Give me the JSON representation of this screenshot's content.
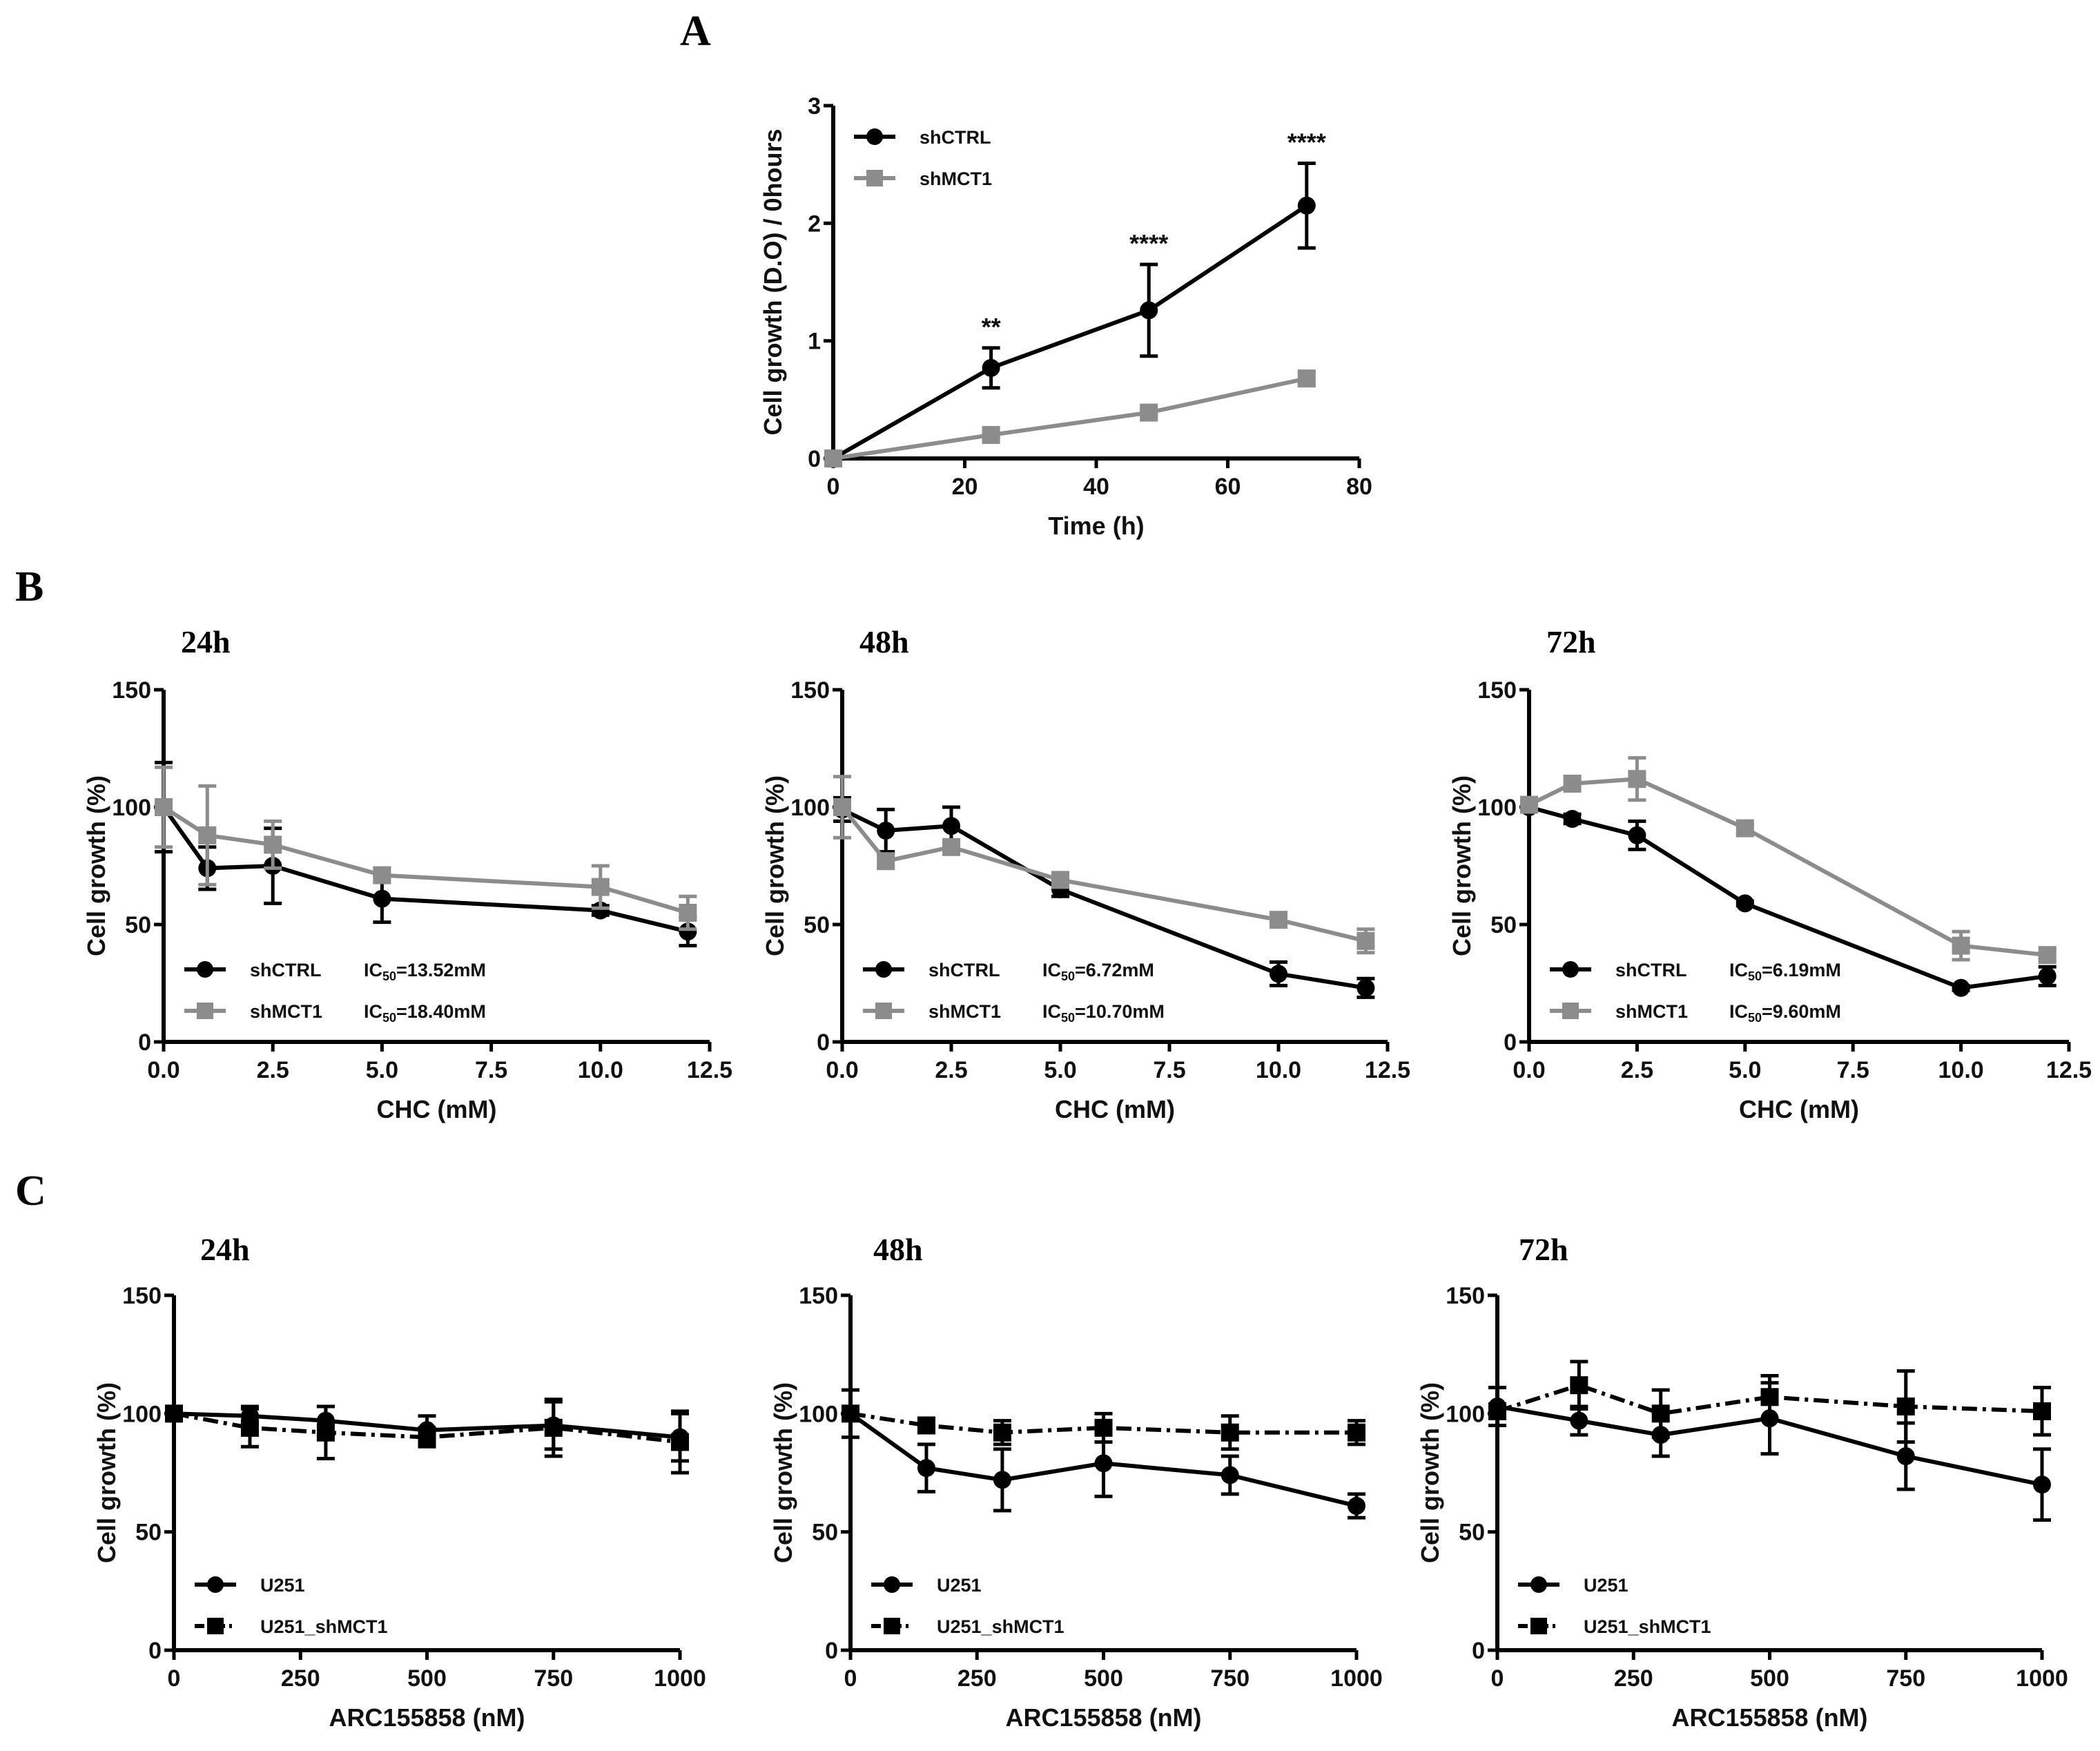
{
  "panel_labels": [
    "A",
    "B",
    "C"
  ],
  "chart_data": [
    {
      "id": "A",
      "type": "line",
      "title": "",
      "xlabel": "Time (h)",
      "ylabel": "Cell growth (D.O) / 0hours",
      "xlim": [
        0,
        80
      ],
      "ylim": [
        0,
        3
      ],
      "xticks": [
        "0",
        "20",
        "40",
        "60",
        "80"
      ],
      "xtickvals": [
        0,
        20,
        40,
        60,
        80
      ],
      "yticks": [
        "0",
        "1",
        "2",
        "3"
      ],
      "ytickvals": [
        0,
        1,
        2,
        3
      ],
      "legend": "top-left",
      "x": [
        0,
        24,
        48,
        72
      ],
      "series": [
        {
          "name": "shCTRL",
          "ic50": "",
          "color": "#000000",
          "marker": "circle",
          "dash": false,
          "values": [
            0,
            0.77,
            1.26,
            2.15
          ],
          "errors": [
            0,
            0.17,
            0.39,
            0.36
          ]
        },
        {
          "name": "shMCT1",
          "ic50": "",
          "color": "#8c8c8c",
          "marker": "square",
          "dash": false,
          "values": [
            0,
            0.2,
            0.39,
            0.68
          ],
          "errors": [
            0,
            0.02,
            0.03,
            0.05
          ]
        }
      ],
      "annotations": [
        {
          "x": 24,
          "text": "**"
        },
        {
          "x": 48,
          "text": "****"
        },
        {
          "x": 72,
          "text": "****"
        }
      ]
    },
    {
      "id": "B-24h",
      "type": "line",
      "title": "24h",
      "xlabel": "CHC (mM)",
      "ylabel": "Cell growth (%)",
      "xlim": [
        0,
        12.5
      ],
      "ylim": [
        0,
        150
      ],
      "xticks": [
        "0.0",
        "2.5",
        "5.0",
        "7.5",
        "10.0",
        "12.5"
      ],
      "xtickvals": [
        0,
        2.5,
        5,
        7.5,
        10,
        12.5
      ],
      "yticks": [
        "0",
        "50",
        "100",
        "150"
      ],
      "ytickvals": [
        0,
        50,
        100,
        150
      ],
      "legend": "bottom-left",
      "x": [
        0,
        1,
        2.5,
        5,
        10,
        12
      ],
      "series": [
        {
          "name": "shCTRL",
          "ic50": "13.52mM",
          "color": "#000000",
          "marker": "circle",
          "dash": false,
          "values": [
            100,
            74,
            75,
            61,
            56,
            47
          ],
          "errors": [
            19,
            9,
            16,
            10,
            2,
            6
          ]
        },
        {
          "name": "shMCT1",
          "ic50": "18.40mM",
          "color": "#8c8c8c",
          "marker": "square",
          "dash": false,
          "values": [
            100,
            88,
            84,
            71,
            66,
            55
          ],
          "errors": [
            17,
            21,
            10,
            3,
            9,
            7
          ]
        }
      ]
    },
    {
      "id": "B-48h",
      "type": "line",
      "title": "48h",
      "xlabel": "CHC (mM)",
      "ylabel": "Cell growth (%)",
      "xlim": [
        0,
        12.5
      ],
      "ylim": [
        0,
        150
      ],
      "xticks": [
        "0.0",
        "2.5",
        "5.0",
        "7.5",
        "10.0",
        "12.5"
      ],
      "xtickvals": [
        0,
        2.5,
        5,
        7.5,
        10,
        12.5
      ],
      "yticks": [
        "0",
        "50",
        "100",
        "150"
      ],
      "ytickvals": [
        0,
        50,
        100,
        150
      ],
      "legend": "bottom-left",
      "x": [
        0,
        1,
        2.5,
        5,
        10,
        12
      ],
      "series": [
        {
          "name": "shCTRL",
          "ic50": "6.72mM",
          "color": "#000000",
          "marker": "circle",
          "dash": false,
          "values": [
            99,
            90,
            92,
            65,
            29,
            23
          ],
          "errors": [
            5,
            9,
            8,
            3,
            5,
            4
          ]
        },
        {
          "name": "shMCT1",
          "ic50": "10.70mM",
          "color": "#8c8c8c",
          "marker": "square",
          "dash": false,
          "values": [
            100,
            77,
            83,
            69,
            52,
            43
          ],
          "errors": [
            13,
            3,
            2,
            2,
            3,
            5
          ]
        }
      ]
    },
    {
      "id": "B-72h",
      "type": "line",
      "title": "72h",
      "xlabel": "CHC (mM)",
      "ylabel": "Cell growth (%)",
      "xlim": [
        0,
        12.5
      ],
      "ylim": [
        0,
        150
      ],
      "xticks": [
        "0.0",
        "2.5",
        "5.0",
        "7.5",
        "10.0",
        "12.5"
      ],
      "xtickvals": [
        0,
        2.5,
        5,
        7.5,
        10,
        12.5
      ],
      "yticks": [
        "0",
        "50",
        "100",
        "150"
      ],
      "ytickvals": [
        0,
        50,
        100,
        150
      ],
      "legend": "bottom-left",
      "x": [
        0,
        1,
        2.5,
        5,
        10,
        12
      ],
      "series": [
        {
          "name": "shCTRL",
          "ic50": "6.19mM",
          "color": "#000000",
          "marker": "circle",
          "dash": false,
          "values": [
            100,
            95,
            88,
            59,
            23,
            28
          ],
          "errors": [
            2,
            2,
            6,
            1,
            1,
            4
          ]
        },
        {
          "name": "shMCT1",
          "ic50": "9.60mM",
          "color": "#8c8c8c",
          "marker": "square",
          "dash": false,
          "values": [
            101,
            110,
            112,
            91,
            41,
            37
          ],
          "errors": [
            3,
            2,
            9,
            2,
            6,
            2
          ]
        }
      ]
    },
    {
      "id": "C-24h",
      "type": "line",
      "title": "24h",
      "xlabel": "ARC155858 (nM)",
      "ylabel": "Cell growth (%)",
      "xlim": [
        0,
        1000
      ],
      "ylim": [
        0,
        150
      ],
      "xticks": [
        "0",
        "250",
        "500",
        "750",
        "1000"
      ],
      "xtickvals": [
        0,
        250,
        500,
        750,
        1000
      ],
      "yticks": [
        "0",
        "50",
        "100",
        "150"
      ],
      "ytickvals": [
        0,
        50,
        100,
        150
      ],
      "legend": "bottom-left",
      "x": [
        0,
        150,
        300,
        500,
        750,
        1000
      ],
      "series": [
        {
          "name": "U251",
          "ic50": "",
          "color": "#000000",
          "marker": "circle",
          "dash": false,
          "values": [
            100,
            99,
            97,
            93,
            95,
            90
          ],
          "errors": [
            3,
            4,
            6,
            6,
            10,
            10
          ]
        },
        {
          "name": "U251_shMCT1",
          "ic50": "",
          "color": "#000000",
          "marker": "square",
          "dash": true,
          "values": [
            100,
            94,
            92,
            90,
            94,
            88
          ],
          "errors": [
            2,
            8,
            11,
            4,
            12,
            13
          ]
        }
      ]
    },
    {
      "id": "C-48h",
      "type": "line",
      "title": "48h",
      "xlabel": "ARC155858 (nM)",
      "ylabel": "Cell growth (%)",
      "xlim": [
        0,
        1000
      ],
      "ylim": [
        0,
        150
      ],
      "xticks": [
        "0",
        "250",
        "500",
        "750",
        "1000"
      ],
      "xtickvals": [
        0,
        250,
        500,
        750,
        1000
      ],
      "yticks": [
        "0",
        "50",
        "100",
        "150"
      ],
      "ytickvals": [
        0,
        50,
        100,
        150
      ],
      "legend": "bottom-left",
      "x": [
        0,
        150,
        300,
        500,
        750,
        1000
      ],
      "series": [
        {
          "name": "U251",
          "ic50": "",
          "color": "#000000",
          "marker": "circle",
          "dash": false,
          "values": [
            100,
            77,
            72,
            79,
            74,
            61
          ],
          "errors": [
            10,
            10,
            13,
            14,
            8,
            5
          ]
        },
        {
          "name": "U251_shMCT1",
          "ic50": "",
          "color": "#000000",
          "marker": "square",
          "dash": true,
          "values": [
            100,
            95,
            92,
            94,
            92,
            92
          ],
          "errors": [
            2,
            3,
            5,
            6,
            7,
            5
          ]
        }
      ]
    },
    {
      "id": "C-72h",
      "type": "line",
      "title": "72h",
      "xlabel": "ARC155858 (nM)",
      "ylabel": "Cell growth (%)",
      "xlim": [
        0,
        1000
      ],
      "ylim": [
        0,
        150
      ],
      "xticks": [
        "0",
        "250",
        "500",
        "750",
        "1000"
      ],
      "xtickvals": [
        0,
        250,
        500,
        750,
        1000
      ],
      "yticks": [
        "0",
        "50",
        "100",
        "150"
      ],
      "ytickvals": [
        0,
        50,
        100,
        150
      ],
      "legend": "bottom-left",
      "x": [
        0,
        150,
        300,
        500,
        750,
        1000
      ],
      "series": [
        {
          "name": "U251",
          "ic50": "",
          "color": "#000000",
          "marker": "circle",
          "dash": false,
          "values": [
            103,
            97,
            91,
            98,
            82,
            70
          ],
          "errors": [
            8,
            6,
            9,
            15,
            14,
            15
          ]
        },
        {
          "name": "U251_shMCT1",
          "ic50": "",
          "color": "#000000",
          "marker": "square",
          "dash": true,
          "values": [
            101,
            112,
            100,
            107,
            103,
            101
          ],
          "errors": [
            3,
            10,
            10,
            9,
            15,
            10
          ]
        }
      ]
    }
  ]
}
